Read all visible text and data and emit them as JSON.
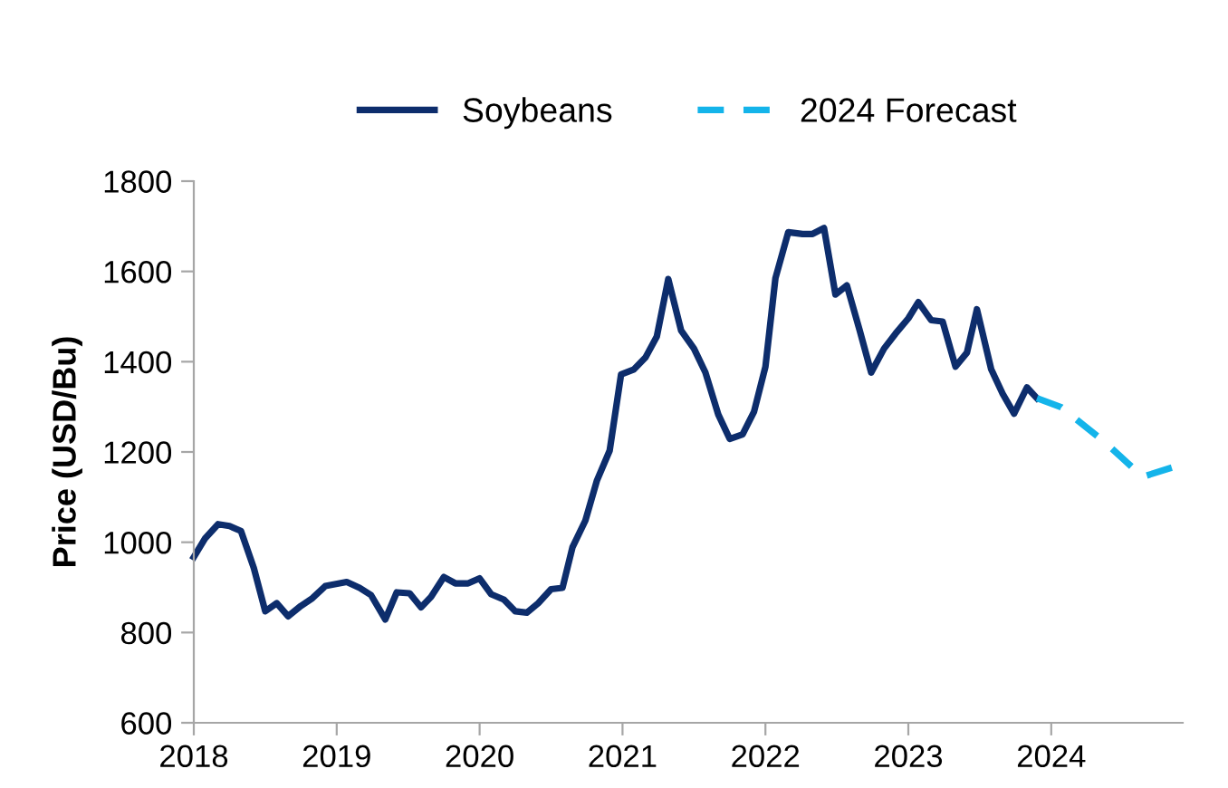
{
  "chart_data": {
    "type": "line",
    "ylabel": "Price (USD/Bu)",
    "xlim": [
      2018,
      2024.92
    ],
    "xticks": [
      2018,
      2019,
      2020,
      2021,
      2022,
      2023,
      2024
    ],
    "ylim": [
      600,
      1800
    ],
    "yticks": [
      600,
      800,
      1000,
      1200,
      1400,
      1600,
      1800
    ],
    "grid": false,
    "legend": "top",
    "series": [
      {
        "name": "Soybeans",
        "color": "#0d2d6c",
        "line_style": "solid",
        "x": [
          2018.0,
          2018.08,
          2018.17,
          2018.25,
          2018.33,
          2018.42,
          2018.5,
          2018.58,
          2018.66,
          2018.75,
          2018.83,
          2018.92,
          2019.07,
          2019.16,
          2019.24,
          2019.34,
          2019.42,
          2019.51,
          2019.59,
          2019.66,
          2019.75,
          2019.83,
          2019.92,
          2020.0,
          2020.08,
          2020.17,
          2020.25,
          2020.33,
          2020.41,
          2020.5,
          2020.58,
          2020.65,
          2020.74,
          2020.82,
          2020.91,
          2020.99,
          2021.08,
          2021.16,
          2021.24,
          2021.32,
          2021.41,
          2021.5,
          2021.58,
          2021.67,
          2021.75,
          2021.84,
          2021.92,
          2022.0,
          2022.07,
          2022.16,
          2022.26,
          2022.33,
          2022.41,
          2022.49,
          2022.57,
          2022.66,
          2022.74,
          2022.83,
          2022.91,
          2023.0,
          2023.07,
          2023.16,
          2023.24,
          2023.33,
          2023.41,
          2023.48,
          2023.58,
          2023.66,
          2023.74,
          2023.83,
          2023.9
        ],
        "values": [
          967,
          1009,
          1040,
          1036,
          1025,
          943,
          847,
          865,
          836,
          859,
          876,
          903,
          912,
          899,
          883,
          829,
          889,
          887,
          856,
          879,
          923,
          909,
          909,
          920,
          885,
          873,
          847,
          844,
          865,
          896,
          899,
          989,
          1048,
          1136,
          1203,
          1372,
          1383,
          1409,
          1456,
          1583,
          1469,
          1429,
          1376,
          1283,
          1229,
          1239,
          1289,
          1389,
          1585,
          1687,
          1683,
          1683,
          1696,
          1549,
          1569,
          1469,
          1376,
          1429,
          1462,
          1496,
          1532,
          1492,
          1489,
          1389,
          1420,
          1516,
          1383,
          1329,
          1285,
          1343,
          1319
        ]
      },
      {
        "name": "2024 Forecast",
        "color": "#14b4ea",
        "line_style": "dashed",
        "x": [
          2023.9,
          2024.07,
          2024.37,
          2024.64,
          2024.92
        ],
        "values": [
          1319,
          1299,
          1223,
          1145,
          1173
        ]
      }
    ]
  }
}
